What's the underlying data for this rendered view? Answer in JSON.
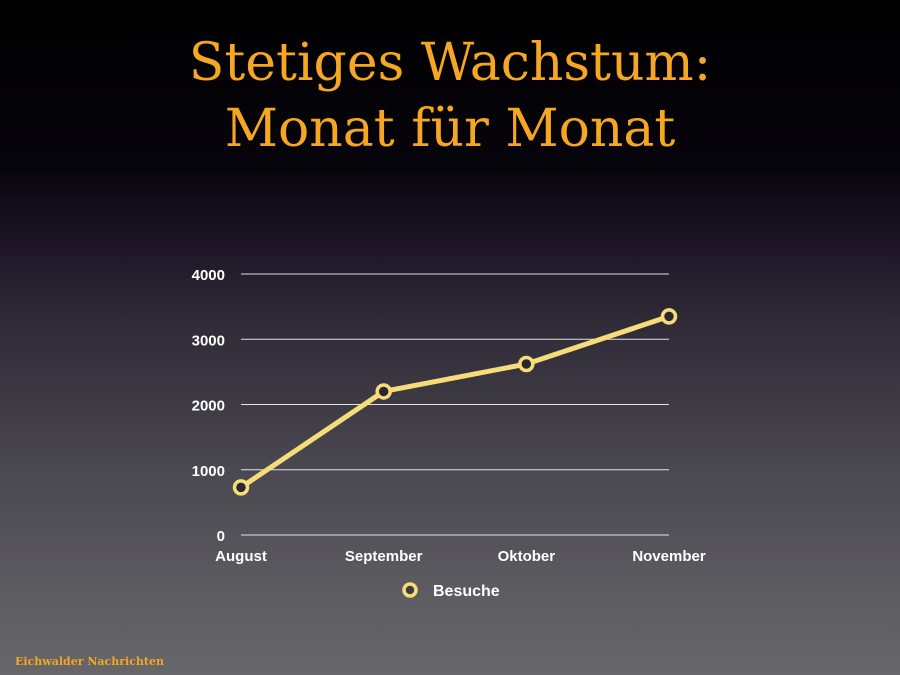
{
  "slide": {
    "title_line1": "Stetiges Wachstum:",
    "title_line2": "Monat für Monat",
    "footer": "Eichwalder Nachrichten"
  },
  "colors": {
    "title": "#f5a623",
    "series": "#f7dd7a",
    "grid": "#ffffff",
    "text": "#ffffff"
  },
  "chart_data": {
    "type": "line",
    "categories": [
      "August",
      "September",
      "Oktober",
      "November"
    ],
    "series": [
      {
        "name": "Besuche",
        "values": [
          730,
          2200,
          2620,
          3350
        ]
      }
    ],
    "ylim": [
      0,
      4000
    ],
    "yticks": [
      0,
      1000,
      2000,
      3000,
      4000
    ],
    "grid": true,
    "legend": "bottom-center",
    "xlabel": "",
    "ylabel": ""
  }
}
